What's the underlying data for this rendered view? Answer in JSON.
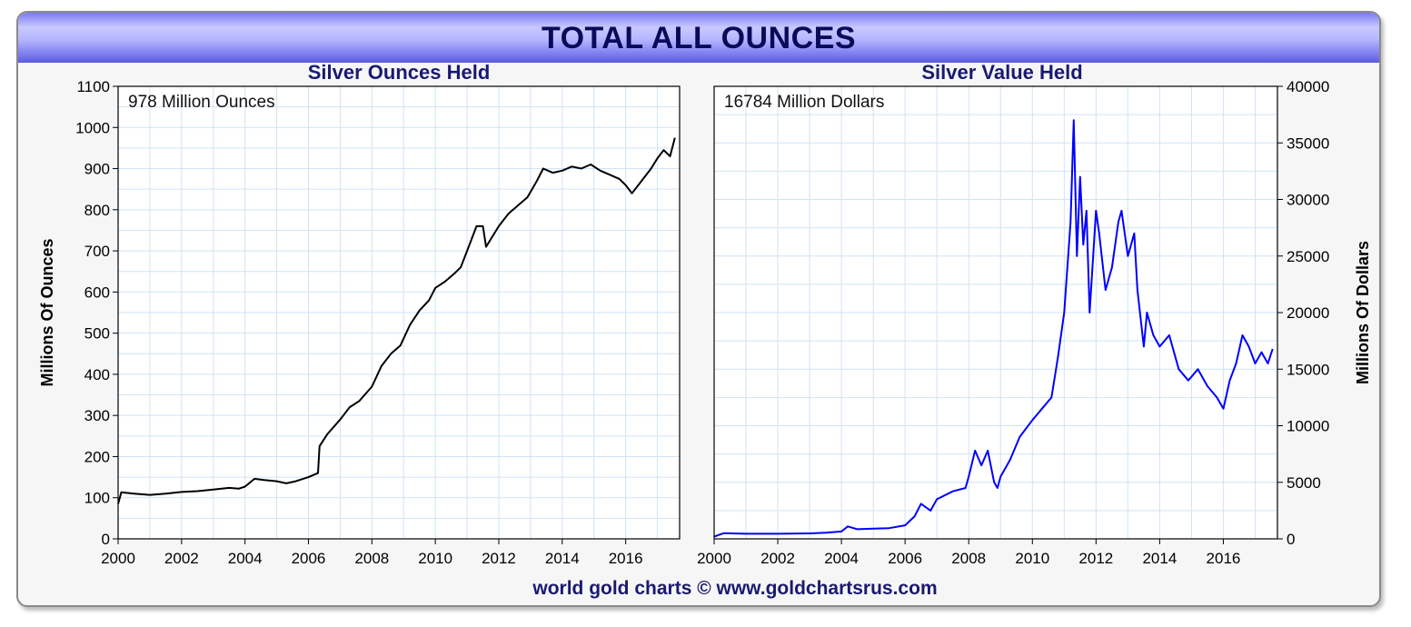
{
  "banner": {
    "title": "TOTAL ALL OUNCES"
  },
  "footer": {
    "credit": "world gold charts © www.goldchartsrus.com"
  },
  "colors": {
    "banner_text": "#0a0a5a",
    "title_text": "#1a1a70",
    "left_line": "#000000",
    "right_line": "#0000ff",
    "grid": "#cfe4f5"
  },
  "chart_data": [
    {
      "type": "line",
      "title": "Silver Ounces Held",
      "annotation": "978 Million Ounces",
      "xlabel": "",
      "ylabel": "Millions Of Ounces",
      "xlim": [
        2000,
        2017.7
      ],
      "ylim": [
        0,
        1100
      ],
      "x_ticks": [
        "2000",
        "2002",
        "2004",
        "2006",
        "2008",
        "2010",
        "2012",
        "2014",
        "2016"
      ],
      "y_ticks": [
        "0",
        "100",
        "200",
        "300",
        "400",
        "500",
        "600",
        "700",
        "800",
        "900",
        "1000",
        "1100"
      ],
      "series": [
        {
          "color": "#000000",
          "x": [
            2000.0,
            2000.1,
            2000.5,
            2001.0,
            2001.5,
            2002.0,
            2002.5,
            2003.0,
            2003.5,
            2003.8,
            2004.0,
            2004.3,
            2004.6,
            2005.0,
            2005.3,
            2005.6,
            2006.0,
            2006.3,
            2006.35,
            2006.6,
            2007.0,
            2007.3,
            2007.6,
            2008.0,
            2008.3,
            2008.6,
            2008.9,
            2009.2,
            2009.5,
            2009.8,
            2010.0,
            2010.3,
            2010.6,
            2010.8,
            2011.0,
            2011.3,
            2011.5,
            2011.6,
            2011.8,
            2012.0,
            2012.3,
            2012.6,
            2012.9,
            2013.2,
            2013.4,
            2013.7,
            2014.0,
            2014.3,
            2014.6,
            2014.9,
            2015.2,
            2015.5,
            2015.8,
            2016.0,
            2016.2,
            2016.5,
            2016.8,
            2017.0,
            2017.2,
            2017.4,
            2017.55
          ],
          "y": [
            85,
            113,
            110,
            107,
            110,
            114,
            116,
            120,
            124,
            122,
            127,
            146,
            143,
            140,
            135,
            140,
            150,
            160,
            225,
            255,
            290,
            320,
            335,
            370,
            420,
            450,
            470,
            520,
            555,
            580,
            610,
            625,
            645,
            660,
            700,
            760,
            760,
            710,
            735,
            760,
            790,
            810,
            830,
            870,
            900,
            890,
            895,
            905,
            900,
            910,
            895,
            885,
            875,
            860,
            840,
            870,
            900,
            925,
            945,
            930,
            975
          ]
        }
      ]
    },
    {
      "type": "line",
      "title": "Silver Value Held",
      "annotation": "16784 Million Dollars",
      "xlabel": "",
      "ylabel": "Millions Of Dollars",
      "xlim": [
        2000,
        2017.7
      ],
      "ylim": [
        0,
        40000
      ],
      "x_ticks": [
        "2000",
        "2002",
        "2004",
        "2006",
        "2008",
        "2010",
        "2012",
        "2014",
        "2016"
      ],
      "y_ticks": [
        "0",
        "5000",
        "10000",
        "15000",
        "20000",
        "25000",
        "30000",
        "35000",
        "40000"
      ],
      "series": [
        {
          "color": "#0000ff",
          "x": [
            2000.0,
            2000.3,
            2001.0,
            2002.0,
            2003.0,
            2003.5,
            2004.0,
            2004.2,
            2004.5,
            2005.0,
            2005.5,
            2006.0,
            2006.3,
            2006.5,
            2006.8,
            2007.0,
            2007.5,
            2007.9,
            2008.0,
            2008.2,
            2008.4,
            2008.6,
            2008.8,
            2008.9,
            2009.0,
            2009.3,
            2009.6,
            2010.0,
            2010.3,
            2010.6,
            2010.8,
            2011.0,
            2011.1,
            2011.2,
            2011.3,
            2011.4,
            2011.5,
            2011.6,
            2011.7,
            2011.8,
            2012.0,
            2012.1,
            2012.3,
            2012.5,
            2012.7,
            2012.8,
            2013.0,
            2013.2,
            2013.3,
            2013.5,
            2013.6,
            2013.8,
            2014.0,
            2014.3,
            2014.6,
            2014.9,
            2015.2,
            2015.5,
            2015.8,
            2016.0,
            2016.2,
            2016.4,
            2016.6,
            2016.8,
            2017.0,
            2017.2,
            2017.4,
            2017.55
          ],
          "y": [
            200,
            500,
            450,
            450,
            480,
            550,
            650,
            1100,
            850,
            900,
            950,
            1200,
            2000,
            3100,
            2500,
            3500,
            4200,
            4500,
            5500,
            7800,
            6500,
            7800,
            5000,
            4500,
            5500,
            7000,
            9000,
            10500,
            11500,
            12500,
            16000,
            20000,
            24000,
            28000,
            37000,
            25000,
            32000,
            26000,
            29000,
            20000,
            29000,
            27000,
            22000,
            24000,
            28000,
            29000,
            25000,
            27000,
            22000,
            17000,
            20000,
            18000,
            17000,
            18000,
            15000,
            14000,
            15000,
            13500,
            12500,
            11500,
            14000,
            15500,
            18000,
            17000,
            15500,
            16500,
            15500,
            16784
          ]
        }
      ]
    }
  ]
}
